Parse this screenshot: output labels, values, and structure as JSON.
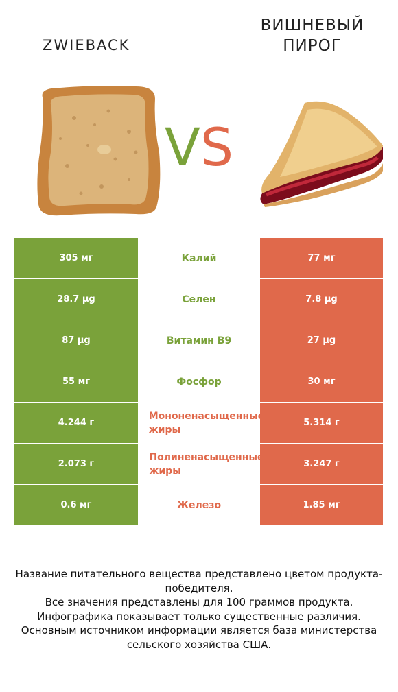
{
  "left_food": {
    "name": "ZWIEBACK"
  },
  "right_food": {
    "name": "ВИШНЕВЫЙ ПИРОГ"
  },
  "vs": {
    "v": "V",
    "s": "S"
  },
  "colors": {
    "winner_left": "#7aa23a",
    "winner_right": "#e0694b"
  },
  "rows": [
    {
      "nutrient": "Калий",
      "left": "305 мг",
      "right": "77 мг",
      "winner": "left"
    },
    {
      "nutrient": "Селен",
      "left": "28.7 µg",
      "right": "7.8 µg",
      "winner": "left"
    },
    {
      "nutrient": "Витамин B9",
      "left": "87 µg",
      "right": "27 µg",
      "winner": "left"
    },
    {
      "nutrient": "Фосфор",
      "left": "55 мг",
      "right": "30 мг",
      "winner": "left"
    },
    {
      "nutrient": "Мононенасыщенные жиры",
      "left": "4.244 г",
      "right": "5.314 г",
      "winner": "right"
    },
    {
      "nutrient": "Полиненасыщенные жиры",
      "left": "2.073 г",
      "right": "3.247 г",
      "winner": "right"
    },
    {
      "nutrient": "Железо",
      "left": "0.6 мг",
      "right": "1.85 мг",
      "winner": "right"
    }
  ],
  "footer": {
    "line1": "Название питательного вещества представлено цветом продукта-победителя.",
    "line2": "Все значения представлены для 100 граммов продукта.",
    "line3": "Инфографика показывает только существенные различия.",
    "line4": "Основным источником информации является база министерства сельского хозяйства США."
  }
}
